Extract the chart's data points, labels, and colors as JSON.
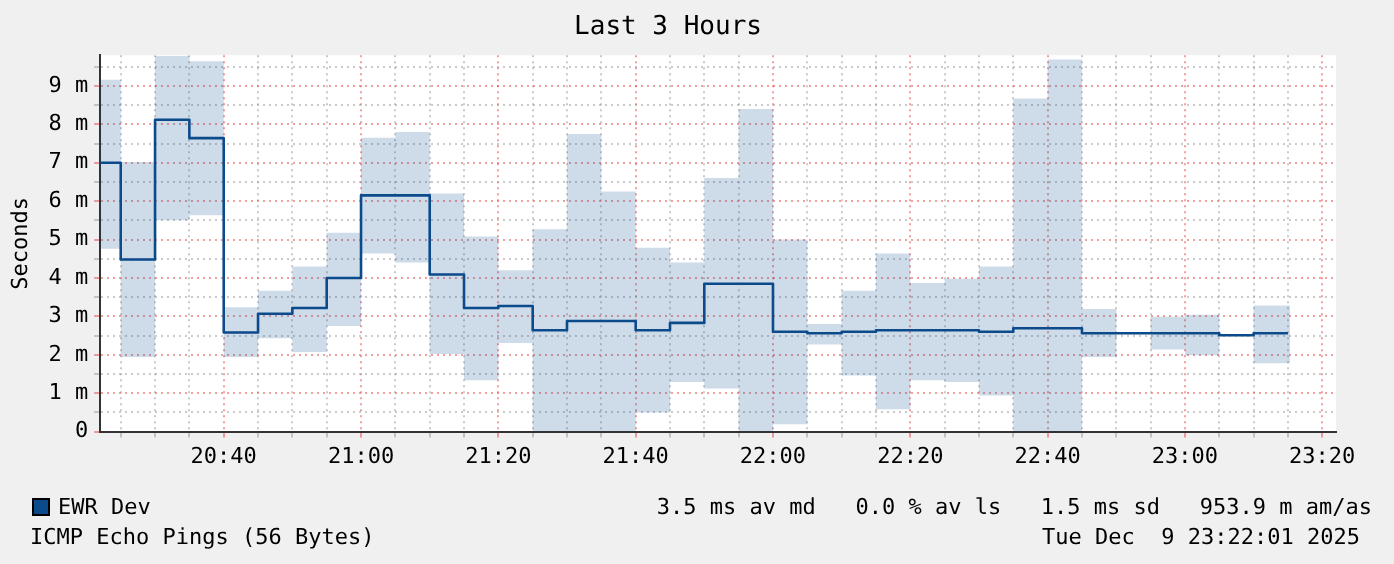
{
  "chart_data": {
    "type": "step",
    "title": "Last 3 Hours",
    "ylabel": "Seconds",
    "x": [
      20.3667,
      20.4167,
      20.5,
      20.5833,
      20.6667,
      20.75,
      20.8333,
      20.9167,
      21,
      21.0833,
      21.1667,
      21.25,
      21.3333,
      21.4167,
      21.5,
      21.5833,
      21.6667,
      21.75,
      21.8333,
      21.9167,
      22,
      22.0833,
      22.1667,
      22.25,
      22.3333,
      22.4167,
      22.5,
      22.5833,
      22.6667,
      22.75,
      22.8333,
      22.9167,
      23,
      23.0833,
      23.1667,
      23.25
    ],
    "series": [
      {
        "name": "EWR Dev",
        "color": "#0b4a8b",
        "values": [
          7.0,
          4.48,
          8.12,
          7.64,
          2.58,
          3.07,
          3.22,
          4.0,
          6.15,
          6.15,
          4.09,
          3.22,
          3.27,
          2.64,
          2.88,
          2.88,
          2.64,
          2.83,
          3.85,
          3.85,
          2.6,
          2.56,
          2.6,
          2.64,
          2.64,
          2.64,
          2.6,
          2.69,
          2.69,
          2.56,
          2.56,
          2.56,
          2.56,
          2.51,
          2.56,
          2.56
        ],
        "upper": [
          9.16,
          7.02,
          9.78,
          9.64,
          3.24,
          3.67,
          4.3,
          5.18,
          7.65,
          7.8,
          6.2,
          5.08,
          4.2,
          5.27,
          7.75,
          6.25,
          4.79,
          4.4,
          6.6,
          8.4,
          5.0,
          2.8,
          3.67,
          4.64,
          3.87,
          3.98,
          4.3,
          8.67,
          9.69,
          3.19,
          null,
          2.99,
          3.04,
          null,
          3.28,
          3.28
        ],
        "lower": [
          4.76,
          1.94,
          5.5,
          5.63,
          1.94,
          2.43,
          2.07,
          2.75,
          4.64,
          4.4,
          2.02,
          1.34,
          2.31,
          0,
          0,
          0,
          0.5,
          1.29,
          1.12,
          0,
          0.19,
          2.27,
          1.46,
          0.58,
          1.34,
          1.29,
          0.94,
          0,
          0,
          1.94,
          null,
          2.14,
          1.99,
          null,
          1.78,
          1.78
        ]
      }
    ],
    "xlim": [
      20.3667,
      23.3667
    ],
    "xticks": [
      {
        "value": 20.4167,
        "label": null
      },
      {
        "value": 20.5,
        "label": null
      },
      {
        "value": 20.5833,
        "label": null
      },
      {
        "value": 20.6667,
        "label": "20:40"
      },
      {
        "value": 20.75,
        "label": null
      },
      {
        "value": 20.8333,
        "label": null
      },
      {
        "value": 20.9167,
        "label": null
      },
      {
        "value": 21,
        "label": "21:00"
      },
      {
        "value": 21.0833,
        "label": null
      },
      {
        "value": 21.1667,
        "label": null
      },
      {
        "value": 21.25,
        "label": null
      },
      {
        "value": 21.3333,
        "label": "21:20"
      },
      {
        "value": 21.4167,
        "label": null
      },
      {
        "value": 21.5,
        "label": null
      },
      {
        "value": 21.5833,
        "label": null
      },
      {
        "value": 21.6667,
        "label": "21:40"
      },
      {
        "value": 21.75,
        "label": null
      },
      {
        "value": 21.8333,
        "label": null
      },
      {
        "value": 21.9167,
        "label": null
      },
      {
        "value": 22,
        "label": "22:00"
      },
      {
        "value": 22.0833,
        "label": null
      },
      {
        "value": 22.1667,
        "label": null
      },
      {
        "value": 22.25,
        "label": null
      },
      {
        "value": 22.3333,
        "label": "22:20"
      },
      {
        "value": 22.4167,
        "label": null
      },
      {
        "value": 22.5,
        "label": null
      },
      {
        "value": 22.5833,
        "label": null
      },
      {
        "value": 22.6667,
        "label": "22:40"
      },
      {
        "value": 22.75,
        "label": null
      },
      {
        "value": 22.8333,
        "label": null
      },
      {
        "value": 22.9167,
        "label": null
      },
      {
        "value": 23,
        "label": "23:00"
      },
      {
        "value": 23.0833,
        "label": null
      },
      {
        "value": 23.1667,
        "label": null
      },
      {
        "value": 23.25,
        "label": null
      },
      {
        "value": 23.3333,
        "label": "23:20"
      }
    ],
    "ylim": [
      0,
      9.8
    ],
    "yticks": [
      0,
      {
        "value": 0.5,
        "label": null
      },
      {
        "value": 1,
        "label": "1 m"
      },
      {
        "value": 1.5,
        "label": null
      },
      {
        "value": 2,
        "label": "2 m"
      },
      {
        "value": 2.5,
        "label": null
      },
      {
        "value": 3,
        "label": "3 m"
      },
      {
        "value": 3.5,
        "label": null
      },
      {
        "value": 4,
        "label": "4 m"
      },
      {
        "value": 4.5,
        "label": null
      },
      {
        "value": 5,
        "label": "5 m"
      },
      {
        "value": 5.5,
        "label": null
      },
      {
        "value": 6,
        "label": "6 m"
      },
      {
        "value": 6.5,
        "label": null
      },
      {
        "value": 7,
        "label": "7 m"
      },
      {
        "value": 7.5,
        "label": null
      },
      {
        "value": 8,
        "label": "8 m"
      },
      {
        "value": 8.5,
        "label": null
      },
      {
        "value": 9,
        "label": "9 m"
      },
      {
        "value": 9.5,
        "label": null
      }
    ],
    "grid": true,
    "legend": "bottom",
    "marker": "none",
    "line_style": "solid",
    "annotations": [
      "3.5 ms av md   0.0 % av ls   1.5 ms sd   953.9 m am/as",
      "ICMP Echo Pings (56 Bytes)",
      "Tue Dec  9 23:22:01 2025"
    ]
  }
}
